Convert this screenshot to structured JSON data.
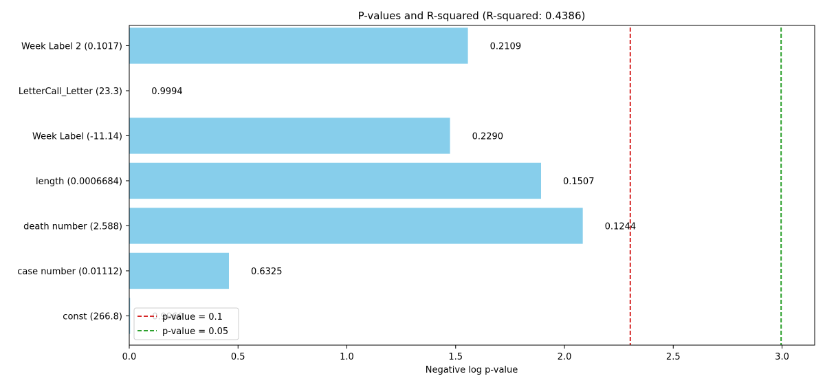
{
  "chart_data": {
    "type": "bar",
    "orientation": "horizontal",
    "title": "P-values and R-squared (R-squared: 0.4386)",
    "xlabel": "Negative log p-value",
    "ylabel": "",
    "xlim": [
      0,
      3.15
    ],
    "xticks": [
      0.0,
      0.5,
      1.0,
      1.5,
      2.0,
      2.5,
      3.0
    ],
    "xtick_labels": [
      "0.0",
      "0.5",
      "1.0",
      "1.5",
      "2.0",
      "2.5",
      "3.0"
    ],
    "grid": false,
    "bar_color": "#87CEEB",
    "categories": [
      "Week Label 2 (0.1017)",
      "LetterCall_Letter (23.3)",
      "Week Label (-11.14)",
      "length (0.0006684)",
      "death number (2.588)",
      "case number (0.01112)",
      "const (266.8)"
    ],
    "values": [
      1.5564,
      0.0006,
      1.4741,
      1.8925,
      2.0842,
      0.4581,
      0.004
    ],
    "bar_labels": [
      "0.2109",
      "0.9994",
      "0.2290",
      "0.1507",
      "0.1244",
      "0.6325",
      "0.9960"
    ],
    "reference_lines": [
      {
        "x": 2.3026,
        "color": "#d62728",
        "label": "p-value = 0.1"
      },
      {
        "x": 2.9957,
        "color": "#2ca02c",
        "label": "p-value = 0.05"
      }
    ],
    "legend_position": "lower-left"
  }
}
